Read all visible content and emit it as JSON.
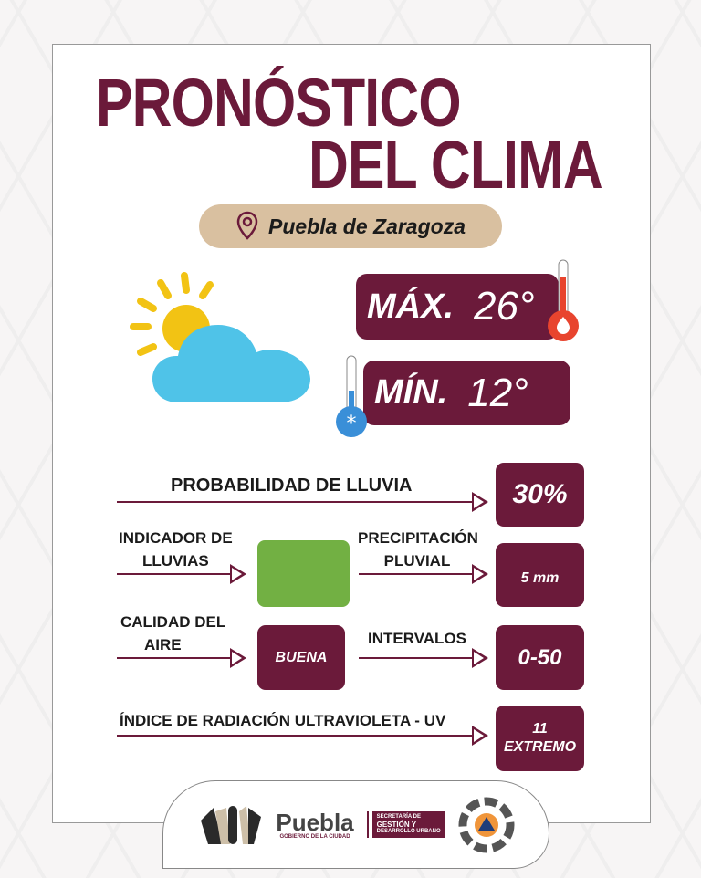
{
  "title": {
    "line1": "PRONÓSTICO",
    "line2": "DEL CLIMA"
  },
  "location": {
    "icon": "map-pin-icon",
    "name": "Puebla de Zaragoza"
  },
  "weather_icon": "sun-behind-cloud-icon",
  "temperature": {
    "max_label": "MÁX.",
    "max_value": "26°",
    "min_label": "MÍN.",
    "min_value": "12°"
  },
  "rain_probability": {
    "label": "PROBABILIDAD DE LLUVIA",
    "value": "30%"
  },
  "rain_indicator": {
    "label_1": "INDICADOR DE",
    "label_2": "LLUVIAS",
    "color": "#72b043"
  },
  "precipitation": {
    "label_1": "PRECIPITACIÓN",
    "label_2": "PLUVIAL",
    "value": "5 mm"
  },
  "air_quality": {
    "label_1": "CALIDAD DEL",
    "label_2": "AIRE",
    "value": "BUENA"
  },
  "intervals": {
    "label": "INTERVALOS",
    "value": "0-50"
  },
  "uv": {
    "label": "ÍNDICE DE RADIACIÓN ULTRAVIOLETA - UV",
    "value": "11",
    "level": "EXTREMO"
  },
  "footer": {
    "brand": "Puebla",
    "brand_sub": "GOBIERNO DE LA CIUDAD",
    "secretaria_1": "SECRETARÍA DE",
    "secretaria_2": "GESTIÓN Y",
    "secretaria_3": "DESARROLLO URBANO"
  },
  "colors": {
    "maroon": "#6b1a3a",
    "tan": "#d9c0a0",
    "sun": "#f2c314",
    "cloud": "#4fc3e8"
  }
}
